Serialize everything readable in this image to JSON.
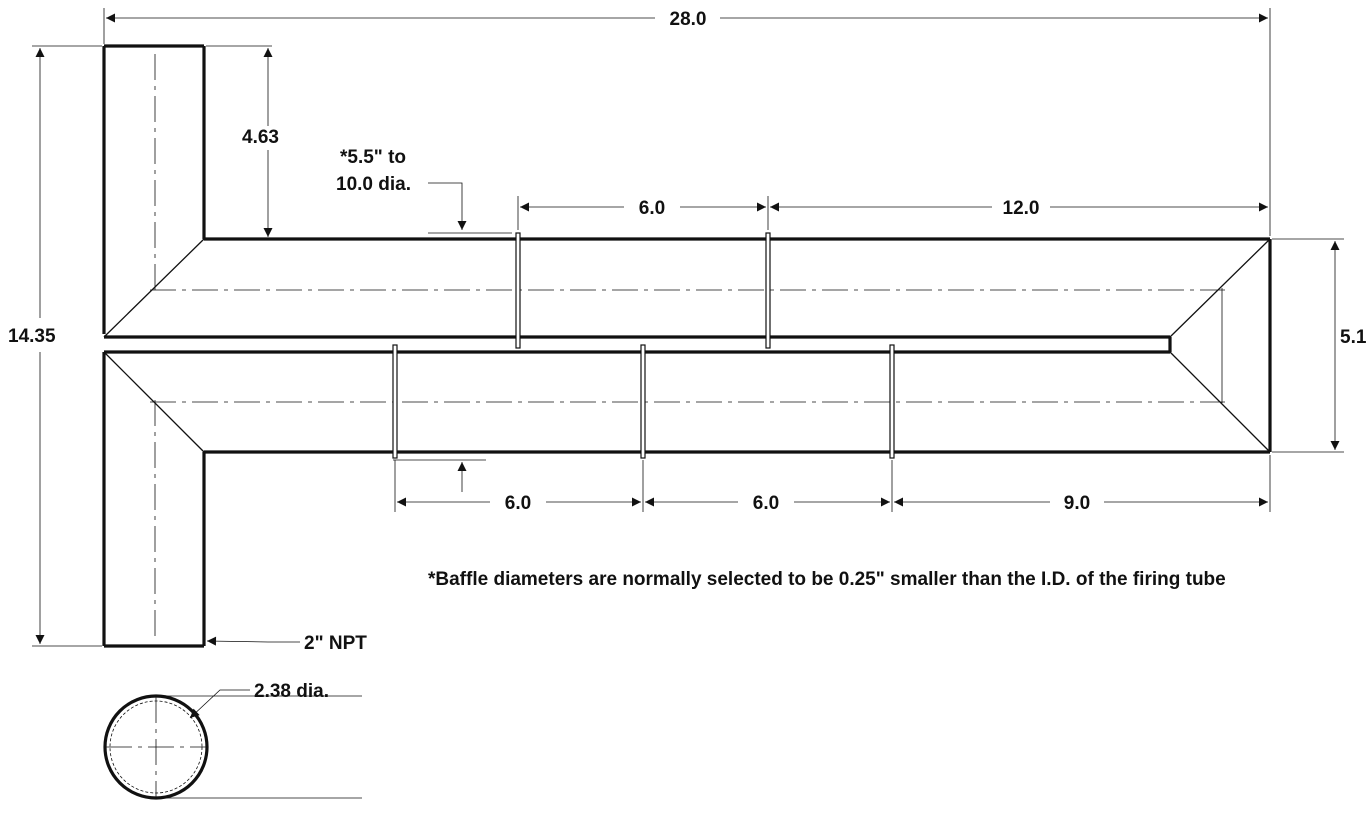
{
  "dimensions": {
    "overall_length": "28.0",
    "overall_height": "14.35",
    "riser_top": "4.63",
    "tube_diameter": "*5.5\" to",
    "tube_diameter_2": "10.0 dia.",
    "upper_baffle_spacing": "6.0",
    "upper_baffle_to_end": "12.0",
    "tube_span": "5.1",
    "lower_spacing_1": "6.0",
    "lower_spacing_2": "6.0",
    "lower_to_end": "9.0",
    "inlet": "2\" NPT",
    "inlet_diameter": "2.38 dia."
  },
  "note": "*Baffle diameters are normally selected to be 0.25\" smaller than the I.D. of the firing tube"
}
